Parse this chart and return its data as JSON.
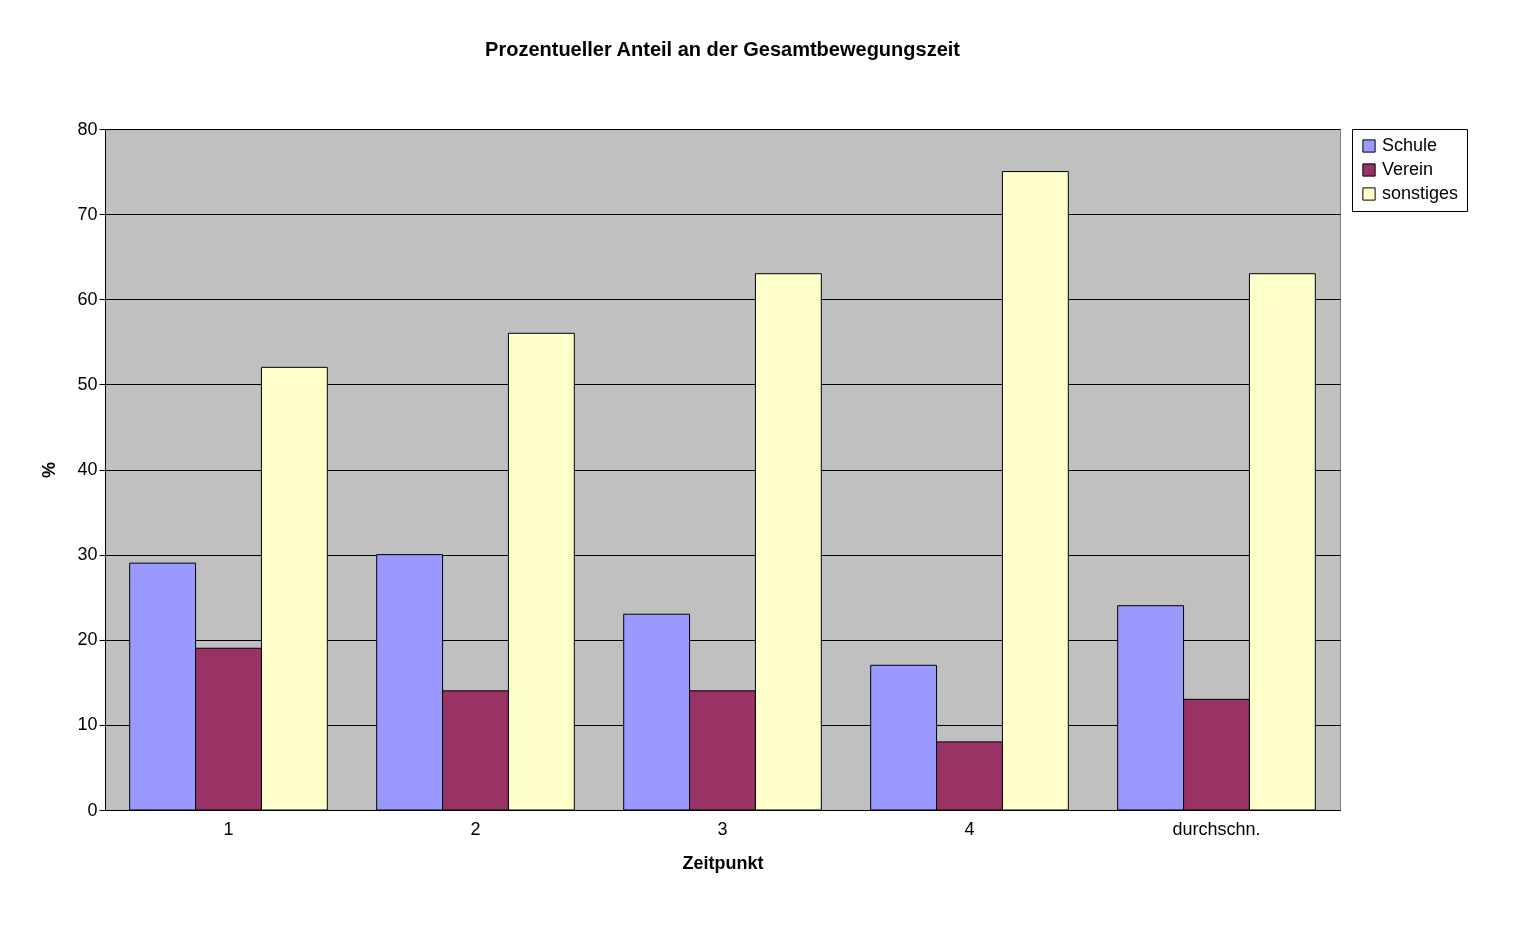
{
  "chart_data": {
    "type": "bar",
    "title": "Prozentueller Anteil an der Gesamtbewegungszeit",
    "xlabel": "Zeitpunkt",
    "ylabel": "%",
    "categories": [
      "1",
      "2",
      "3",
      "4",
      "durchschn."
    ],
    "series": [
      {
        "name": "Schule",
        "color": "#9999ff",
        "values": [
          29,
          30,
          23,
          17,
          24
        ]
      },
      {
        "name": "Verein",
        "color": "#993366",
        "values": [
          19,
          14,
          14,
          8,
          13
        ]
      },
      {
        "name": "sonstiges",
        "color": "#ffffcc",
        "values": [
          52,
          56,
          63,
          75,
          63
        ]
      }
    ],
    "ylim": [
      0,
      80
    ],
    "yticks": [
      0,
      10,
      20,
      30,
      40,
      50,
      60,
      70,
      80
    ],
    "grid": "y",
    "legend": "right"
  }
}
